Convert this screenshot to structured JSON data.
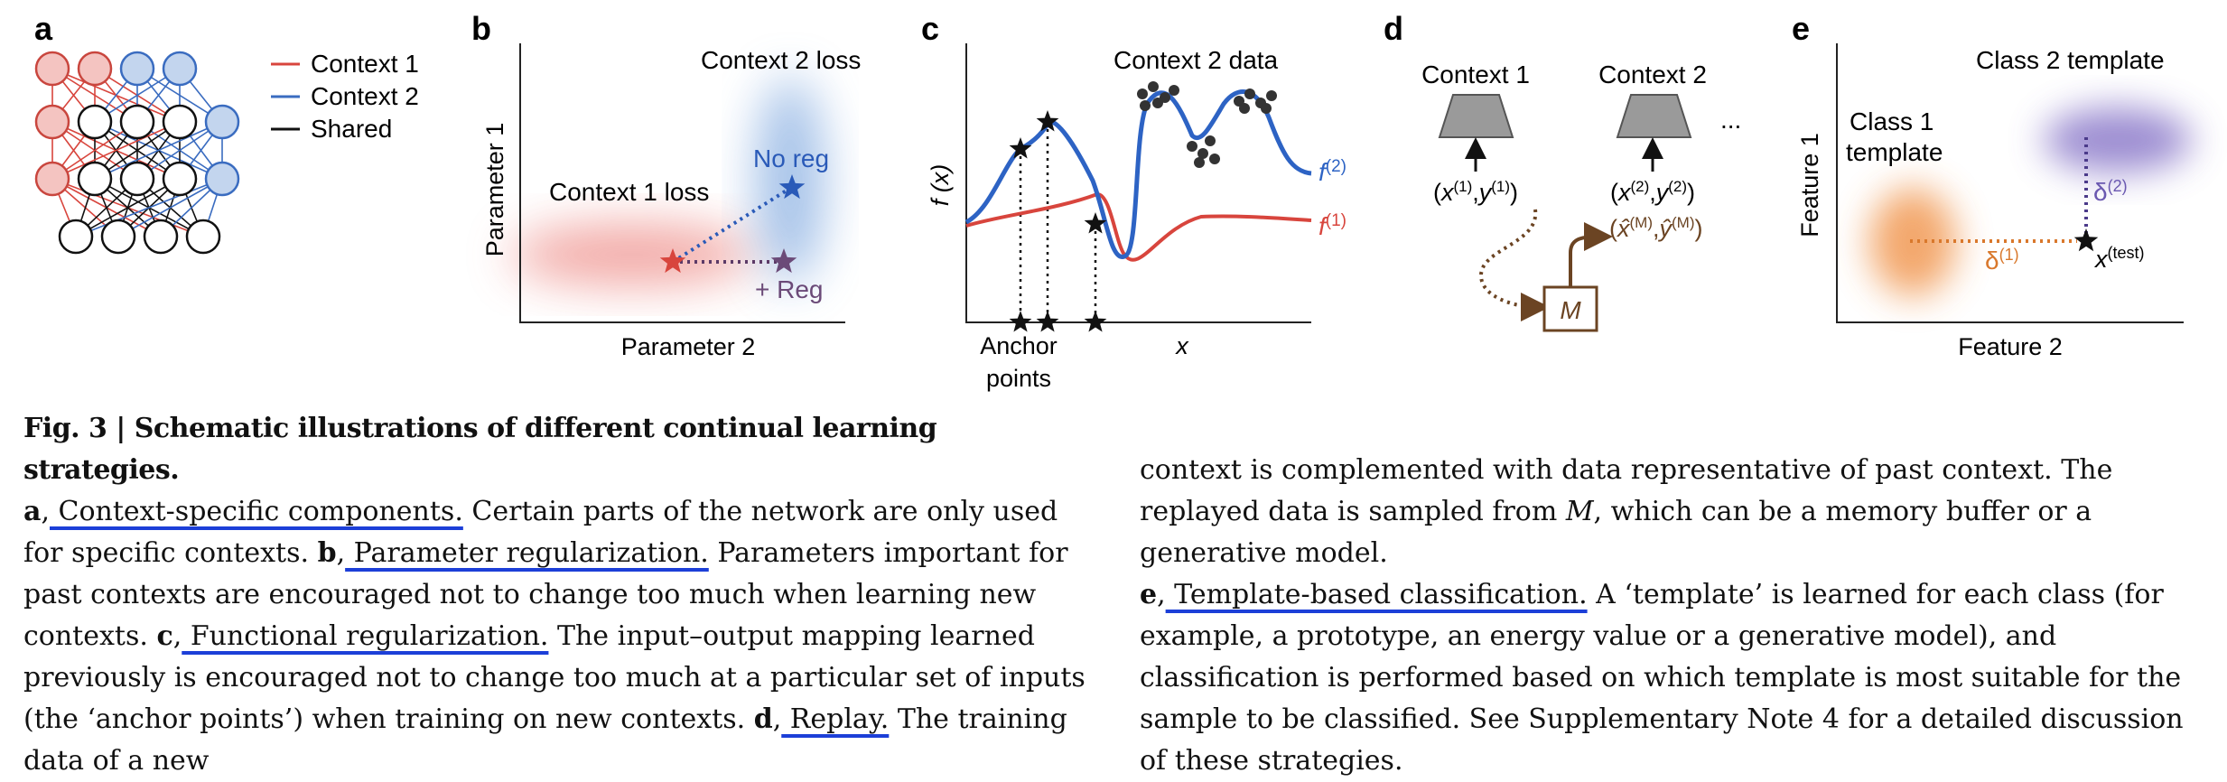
{
  "panels": {
    "a": {
      "letter": "a",
      "legend": [
        {
          "label": "Context 1",
          "color": "#d8453d"
        },
        {
          "label": "Context 2",
          "color": "#3a6cc0"
        },
        {
          "label": "Shared",
          "color": "#111111"
        }
      ]
    },
    "b": {
      "letter": "b",
      "ylabel": "Parameter 1",
      "xlabel": "Parameter 2",
      "context1_loss": "Context 1 loss",
      "context2_loss": "Context 2 loss",
      "noreg": "No reg",
      "reg": "+ Reg"
    },
    "c": {
      "letter": "c",
      "ylabel": "f (x)",
      "xlabel": "x",
      "data_label": "Context 2 data",
      "anchor_line1": "Anchor",
      "anchor_line2": "points",
      "f2_label": "f",
      "f2_sup": "(2)",
      "f1_label": "f",
      "f1_sup": "(1)"
    },
    "d": {
      "letter": "d",
      "context1": "Context 1",
      "context2": "Context 2",
      "ellipsis": "...",
      "data1": "(x(1),y(1))",
      "data2": "(x(2),y(2))",
      "replay": "(x̂(M),ŷ(M))",
      "memory": "M"
    },
    "e": {
      "letter": "e",
      "ylabel": "Feature 1",
      "xlabel": "Feature 2",
      "class1_line1": "Class 1",
      "class1_line2": "template",
      "class2": "Class 2 template",
      "delta1": "δ(1)",
      "delta2": "δ(2)",
      "xtest": "x(test)"
    }
  },
  "caption": {
    "title": "Fig. 3 | Schematic illustrations of different continual learning strategies.",
    "a_letter": "a",
    "a_heading": " Context-specific components.",
    "a_text": " Certain parts of the network are only used for specific contexts.",
    "b_letter": "b",
    "b_heading": " Parameter regularization.",
    "b_text": " Parameters important for past contexts are encouraged not to change too much when learning new contexts.",
    "c_letter": "c",
    "c_heading": " Functional regularization.",
    "c_text": " The input–output mapping learned previously is encouraged not to change too much at a particular set of inputs (the ‘anchor points’) when training on new contexts.",
    "d_letter": "d",
    "d_heading": " Replay.",
    "d_text_left": " The training data of a new",
    "d_text_right_1": "context is complemented with data representative of past context. The replayed data is sampled from ",
    "d_text_right_M": "M",
    "d_text_right_2": ", which can be a memory buffer or a generative model.",
    "e_letter": "e",
    "e_heading": " Template-based classification.",
    "e_text": " A ‘template’ is learned for each class (for example, a prototype, an energy value or a generative model), and classification is performed based on which template is most suitable for the sample to be classified. See Supplementary Note 4 for a detailed discussion of these strategies."
  }
}
